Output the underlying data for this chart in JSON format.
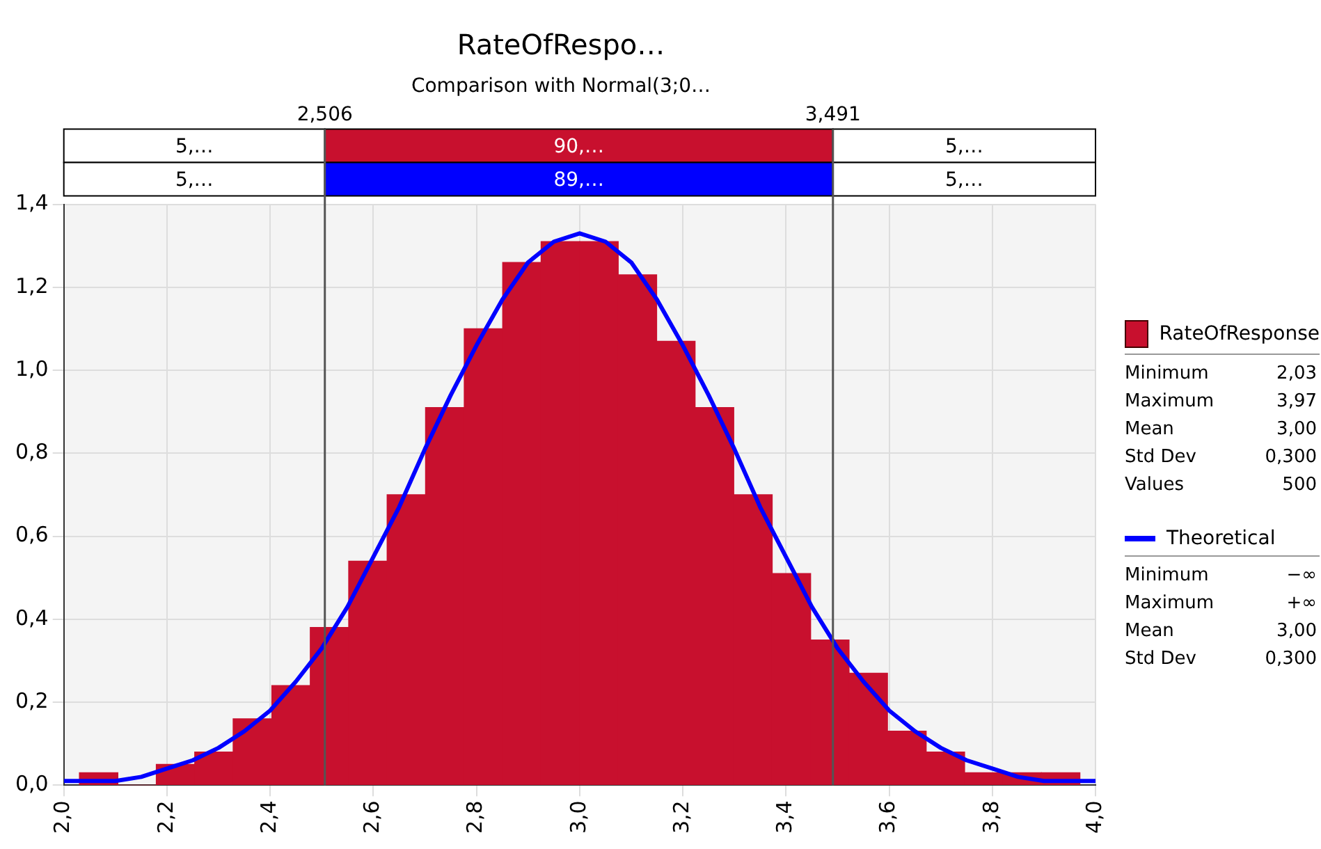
{
  "chart_data": {
    "type": "histogram",
    "title": "RateOfRespo…",
    "subtitle": "Comparison with Normal(3;0…",
    "bins": [
      2.03,
      2.105,
      2.179,
      2.254,
      2.328,
      2.403,
      2.478,
      2.552,
      2.627,
      2.701,
      2.776,
      2.851,
      2.925,
      3.0,
      3.075,
      3.149,
      3.224,
      3.299,
      3.373,
      3.448,
      3.522,
      3.597,
      3.672,
      3.746,
      3.821,
      3.895,
      3.97
    ],
    "series": [
      {
        "name": "RateOfResponse",
        "color": "#c8102e",
        "values": [
          0.03,
          0,
          0.05,
          0.08,
          0.16,
          0.24,
          0.38,
          0.54,
          0.7,
          0.91,
          1.1,
          1.26,
          1.31,
          1.31,
          1.23,
          1.07,
          0.91,
          0.7,
          0.51,
          0.35,
          0.27,
          0.13,
          0.08,
          0.03,
          0.03,
          0.03
        ]
      },
      {
        "name": "Theoretical",
        "type": "line",
        "color": "#0000ff",
        "x": [
          2.0,
          2.05,
          2.1,
          2.15,
          2.2,
          2.25,
          2.3,
          2.35,
          2.4,
          2.45,
          2.5,
          2.55,
          2.6,
          2.65,
          2.7,
          2.75,
          2.8,
          2.85,
          2.9,
          2.95,
          3.0,
          3.05,
          3.1,
          3.15,
          3.2,
          3.25,
          3.3,
          3.35,
          3.4,
          3.45,
          3.5,
          3.55,
          3.6,
          3.65,
          3.7,
          3.75,
          3.8,
          3.85,
          3.9,
          3.95,
          4.0
        ],
        "values": [
          0.01,
          0.01,
          0.01,
          0.02,
          0.04,
          0.06,
          0.09,
          0.13,
          0.18,
          0.25,
          0.33,
          0.43,
          0.55,
          0.67,
          0.81,
          0.94,
          1.06,
          1.17,
          1.26,
          1.31,
          1.33,
          1.31,
          1.26,
          1.17,
          1.06,
          0.94,
          0.81,
          0.67,
          0.55,
          0.43,
          0.33,
          0.25,
          0.18,
          0.13,
          0.09,
          0.06,
          0.04,
          0.02,
          0.01,
          0.01,
          0.01
        ]
      }
    ],
    "xlim": [
      2.0,
      4.0
    ],
    "xticks": [
      {
        "value": 2.0,
        "label": "2,0"
      },
      {
        "value": 2.2,
        "label": "2,2"
      },
      {
        "value": 2.4,
        "label": "2,4"
      },
      {
        "value": 2.6,
        "label": "2,6"
      },
      {
        "value": 2.8,
        "label": "2,8"
      },
      {
        "value": 3.0,
        "label": "3,0"
      },
      {
        "value": 3.2,
        "label": "3,2"
      },
      {
        "value": 3.4,
        "label": "3,4"
      },
      {
        "value": 3.6,
        "label": "3,6"
      },
      {
        "value": 3.8,
        "label": "3,8"
      },
      {
        "value": 4.0,
        "label": "4,0"
      }
    ],
    "ylim": [
      0,
      1.4
    ],
    "yticks": [
      {
        "value": 0,
        "label": "0,0"
      },
      {
        "value": 0.2,
        "label": "0,2"
      },
      {
        "value": 0.4,
        "label": "0,4"
      },
      {
        "value": 0.6,
        "label": "0,6"
      },
      {
        "value": 0.8,
        "label": "0,8"
      },
      {
        "value": 1.0,
        "label": "1,0"
      },
      {
        "value": 1.2,
        "label": "1,2"
      },
      {
        "value": 1.4,
        "label": "1,4"
      }
    ],
    "ref_lines": [
      {
        "axis": "x",
        "value": 2.506,
        "label": "2,506",
        "color": "#555555"
      },
      {
        "axis": "x",
        "value": 3.491,
        "label": "3,491",
        "color": "#555555"
      }
    ],
    "annotations": [
      "5,…",
      "90,…",
      "5,…",
      "5,…",
      "89,…",
      "5,…",
      "Minimum",
      "2,03",
      "Maximum",
      "3,97",
      "Mean",
      "3,00",
      "Std Dev",
      "0,300",
      "Values",
      "500",
      "Minimum",
      "−∞",
      "Maximum",
      "+∞",
      "Mean",
      "3,00",
      "Std Dev",
      "0,300"
    ],
    "grid": true,
    "legend": "right"
  }
}
